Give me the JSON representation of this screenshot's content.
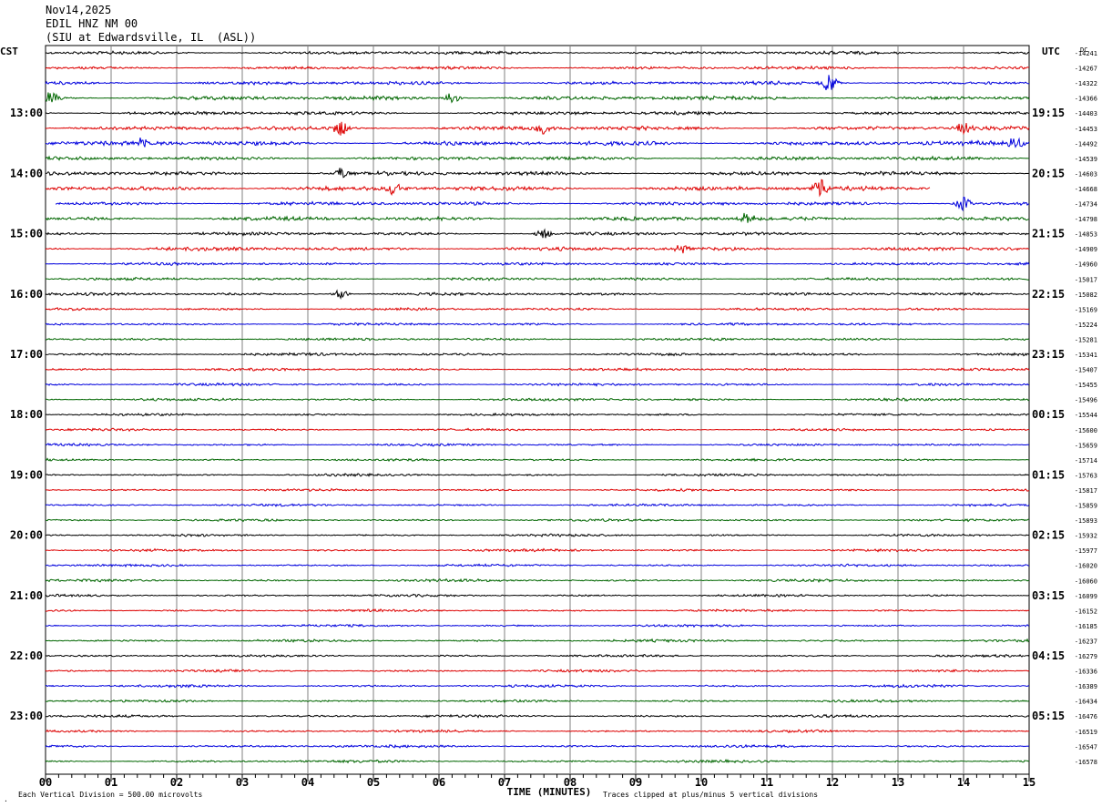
{
  "header": {
    "date": "Nov14,2025",
    "station": "EDIL HNZ NM 00",
    "location": "(SIU at Edwardsville, IL  (ASL))"
  },
  "left_tz": "CST",
  "right_tz": "UTC",
  "dc_label": "DC",
  "footer": {
    "scale_note": "Each Vertical Division =  500.00 microvolts",
    "xlabel": "TIME (MINUTES)",
    "clip_note": "Traces clipped at plus/minus 5 vertical divisions"
  },
  "colors": {
    "trace_cycle": [
      "#000000",
      "#dd0000",
      "#0000dd",
      "#006600"
    ],
    "grid": "#808080"
  },
  "chart_data": {
    "type": "line",
    "title": "",
    "xlabel": "TIME (MINUTES)",
    "xlim": [
      0,
      15
    ],
    "x_ticks": [
      "00",
      "01",
      "02",
      "03",
      "04",
      "05",
      "06",
      "07",
      "08",
      "09",
      "10",
      "11",
      "12",
      "13",
      "14",
      "15"
    ],
    "rows_per_hour": 4,
    "row_minutes": 15,
    "left_hour_labels": [
      "13:00",
      "14:00",
      "15:00",
      "16:00",
      "17:00",
      "18:00",
      "19:00",
      "20:00",
      "21:00",
      "22:00",
      "23:00"
    ],
    "right_hour_labels": [
      "19:15",
      "20:15",
      "21:15",
      "22:15",
      "23:15",
      "00:15",
      "01:15",
      "02:15",
      "03:15",
      "04:15",
      "05:15"
    ],
    "dc_offsets": [
      -14241,
      -14267,
      -14322,
      -14366,
      -14403,
      -14453,
      -14492,
      -14539,
      -14603,
      -14668,
      -14734,
      -14798,
      -14853,
      -14909,
      -14960,
      -15017,
      -15082,
      -15169,
      -15224,
      -15281,
      -15341,
      -15407,
      -15455,
      -15496,
      -15544,
      -15600,
      -15659,
      -15714,
      -15763,
      -15817,
      -15859,
      -15893,
      -15932,
      -15977,
      -16020,
      -16060,
      -16099,
      -16152,
      -16185,
      -16237,
      -16279,
      -16336,
      -16389,
      -16434,
      -16476,
      -16519,
      -16547,
      -16578
    ],
    "trace_amplitude_divisions": [
      1.3,
      1.2,
      1.4,
      1.6,
      1.4,
      1.6,
      1.8,
      1.4,
      1.6,
      1.8,
      1.4,
      1.6,
      1.3,
      1.5,
      1.1,
      1.1,
      1.1,
      1.0,
      1.0,
      1.0,
      1.1,
      1.0,
      1.0,
      1.0,
      0.9,
      0.9,
      0.9,
      0.9,
      0.9,
      0.9,
      0.9,
      0.9,
      0.9,
      1.0,
      0.9,
      1.0,
      0.9,
      0.9,
      0.9,
      1.0,
      0.9,
      0.9,
      1.0,
      0.9,
      1.0,
      0.9,
      1.0,
      1.0
    ],
    "events": [
      {
        "row": 2,
        "minute": 11.95,
        "peak_divisions": 4
      },
      {
        "row": 3,
        "minute": 6.2,
        "peak_divisions": 3
      },
      {
        "row": 3,
        "minute": 0.1,
        "peak_divisions": 3
      },
      {
        "row": 5,
        "minute": 4.5,
        "peak_divisions": 3
      },
      {
        "row": 5,
        "minute": 7.6,
        "peak_divisions": 2.5
      },
      {
        "row": 5,
        "minute": 14.0,
        "peak_divisions": 2.5
      },
      {
        "row": 6,
        "minute": 1.5,
        "peak_divisions": 2.5
      },
      {
        "row": 6,
        "minute": 14.8,
        "peak_divisions": 3
      },
      {
        "row": 8,
        "minute": 4.5,
        "peak_divisions": 2.5
      },
      {
        "row": 9,
        "minute": 11.8,
        "peak_divisions": 5
      },
      {
        "row": 9,
        "minute": 5.3,
        "peak_divisions": 3
      },
      {
        "row": 10,
        "minute": 14.0,
        "peak_divisions": 3
      },
      {
        "row": 11,
        "minute": 10.7,
        "peak_divisions": 2.5
      },
      {
        "row": 12,
        "minute": 7.6,
        "peak_divisions": 2.5
      },
      {
        "row": 13,
        "minute": 9.7,
        "peak_divisions": 2
      },
      {
        "row": 16,
        "minute": 4.5,
        "peak_divisions": 2
      }
    ],
    "gaps": [
      {
        "row": 9,
        "from_minute": 13.5,
        "to_minute": 15
      },
      {
        "row": 10,
        "from_minute": 0,
        "to_minute": 0.15
      }
    ]
  }
}
